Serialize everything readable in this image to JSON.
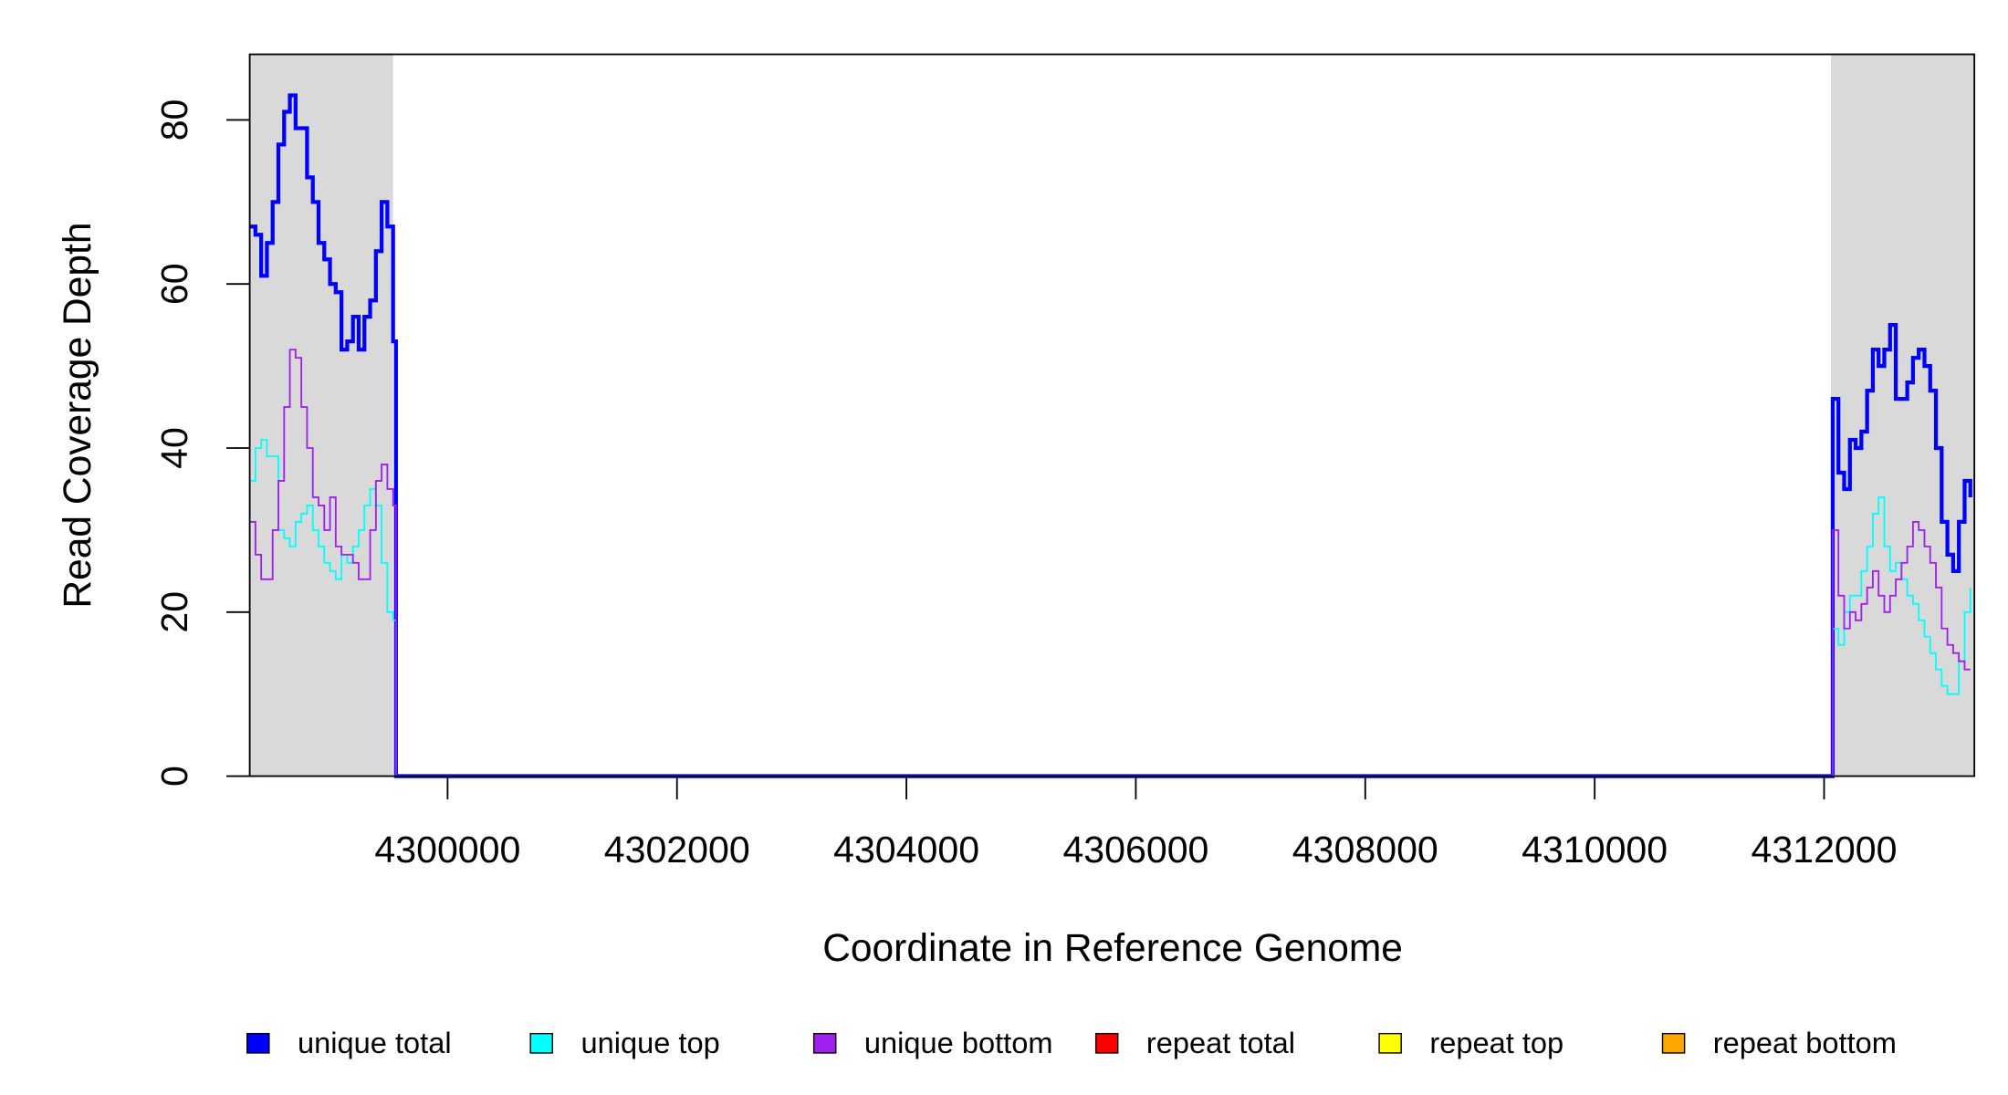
{
  "chart_data": {
    "type": "step",
    "xlabel": "Coordinate in Reference Genome",
    "ylabel": "Read Coverage Depth",
    "xlim": [
      4298275,
      4313310
    ],
    "ylim": [
      0,
      88
    ],
    "xticks": [
      4300000,
      4302000,
      4304000,
      4306000,
      4308000,
      4310000,
      4312000
    ],
    "yticks": [
      0,
      20,
      40,
      60,
      80
    ],
    "shaded_regions": [
      [
        4298275,
        4299525
      ],
      [
        4312060,
        4313310
      ]
    ],
    "shade_color": "#d9d9d9",
    "x": [
      4298275,
      4298325,
      4298375,
      4298425,
      4298475,
      4298525,
      4298575,
      4298625,
      4298675,
      4298725,
      4298775,
      4298825,
      4298875,
      4298925,
      4298975,
      4299025,
      4299075,
      4299125,
      4299175,
      4299225,
      4299275,
      4299325,
      4299375,
      4299425,
      4299475,
      4299525,
      4299550,
      4312050,
      4312075,
      4312125,
      4312175,
      4312225,
      4312275,
      4312325,
      4312375,
      4312425,
      4312475,
      4312525,
      4312575,
      4312625,
      4312675,
      4312725,
      4312775,
      4312825,
      4312875,
      4312925,
      4312975,
      4313025,
      4313075,
      4313125,
      4313175,
      4313225,
      4313275
    ],
    "series": [
      {
        "name": "unique total",
        "color": "#0000ff",
        "width": 3,
        "values": [
          67,
          66,
          61,
          65,
          70,
          77,
          81,
          83,
          79,
          79,
          73,
          70,
          65,
          63,
          60,
          59,
          52,
          53,
          56,
          52,
          56,
          58,
          64,
          70,
          67,
          53,
          0,
          0,
          46,
          37,
          35,
          41,
          40,
          42,
          47,
          52,
          50,
          52,
          55,
          46,
          46,
          48,
          51,
          52,
          50,
          47,
          40,
          31,
          27,
          25,
          31,
          36,
          34
        ]
      },
      {
        "name": "unique top",
        "color": "#00ffff",
        "width": 1.3,
        "values": [
          36,
          40,
          41,
          39,
          39,
          30,
          29,
          28,
          31,
          32,
          33,
          30,
          28,
          26,
          25,
          24,
          27,
          26,
          28,
          30,
          33,
          35,
          33,
          26,
          20,
          19,
          0,
          0,
          18,
          16,
          20,
          22,
          22,
          25,
          28,
          32,
          34,
          28,
          25,
          26,
          24,
          22,
          21,
          19,
          17,
          15,
          13,
          11,
          10,
          10,
          14,
          20,
          23
        ]
      },
      {
        "name": "unique bottom",
        "color": "#a020f0",
        "width": 1.3,
        "values": [
          31,
          27,
          24,
          24,
          30,
          36,
          45,
          52,
          51,
          45,
          40,
          34,
          33,
          30,
          34,
          28,
          27,
          27,
          26,
          24,
          24,
          30,
          36,
          38,
          35,
          33,
          0,
          0,
          30,
          22,
          18,
          20,
          19,
          21,
          23,
          25,
          22,
          20,
          22,
          24,
          26,
          28,
          31,
          30,
          28,
          26,
          23,
          18,
          16,
          15,
          14,
          13,
          13
        ]
      },
      {
        "name": "repeat total",
        "color": "#ff0000",
        "width": 1.3,
        "values": [
          0,
          0,
          0,
          0,
          0,
          0,
          0,
          0,
          0,
          0,
          0,
          0,
          0,
          0,
          0,
          0,
          0,
          0,
          0,
          0,
          0,
          0,
          0,
          0,
          0,
          0,
          0,
          0,
          0,
          0,
          0,
          0,
          0,
          0,
          0,
          0,
          0,
          0,
          0,
          0,
          0,
          0,
          0,
          0,
          0,
          0,
          0,
          0,
          0,
          0,
          0,
          0,
          0
        ]
      },
      {
        "name": "repeat top",
        "color": "#ffff00",
        "width": 1.3,
        "values": [
          0,
          0,
          0,
          0,
          0,
          0,
          0,
          0,
          0,
          0,
          0,
          0,
          0,
          0,
          0,
          0,
          0,
          0,
          0,
          0,
          0,
          0,
          0,
          0,
          0,
          0,
          0,
          0,
          0,
          0,
          0,
          0,
          0,
          0,
          0,
          0,
          0,
          0,
          0,
          0,
          0,
          0,
          0,
          0,
          0,
          0,
          0,
          0,
          0,
          0,
          0,
          0,
          0
        ]
      },
      {
        "name": "repeat bottom",
        "color": "#ffa500",
        "width": 1.3,
        "values": [
          0,
          0,
          0,
          0,
          0,
          0,
          0,
          0,
          0,
          0,
          0,
          0,
          0,
          0,
          0,
          0,
          0,
          0,
          0,
          0,
          0,
          0,
          0,
          0,
          0,
          0,
          0,
          0,
          0,
          0,
          0,
          0,
          0,
          0,
          0,
          0,
          0,
          0,
          0,
          0,
          0,
          0,
          0,
          0,
          0,
          0,
          0,
          0,
          0,
          0,
          0,
          0,
          0
        ]
      }
    ]
  }
}
